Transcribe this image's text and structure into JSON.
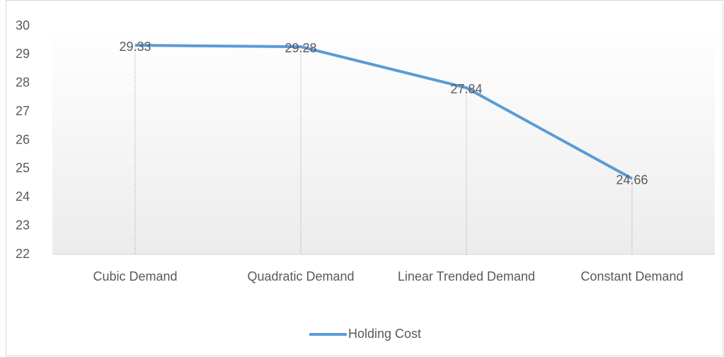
{
  "chart_data": {
    "type": "line",
    "categories": [
      "Cubic Demand",
      "Quadratic Demand",
      "Linear Trended Demand",
      "Constant Demand"
    ],
    "series": [
      {
        "name": "Holding Cost",
        "color": "#5b9bd5",
        "values": [
          29.33,
          29.28,
          27.84,
          24.66
        ]
      }
    ],
    "ylim": [
      22,
      30
    ],
    "yticks": [
      22,
      23,
      24,
      25,
      26,
      27,
      28,
      29,
      30
    ],
    "data_labels": true,
    "drop_lines": true,
    "legend": "bottom"
  }
}
